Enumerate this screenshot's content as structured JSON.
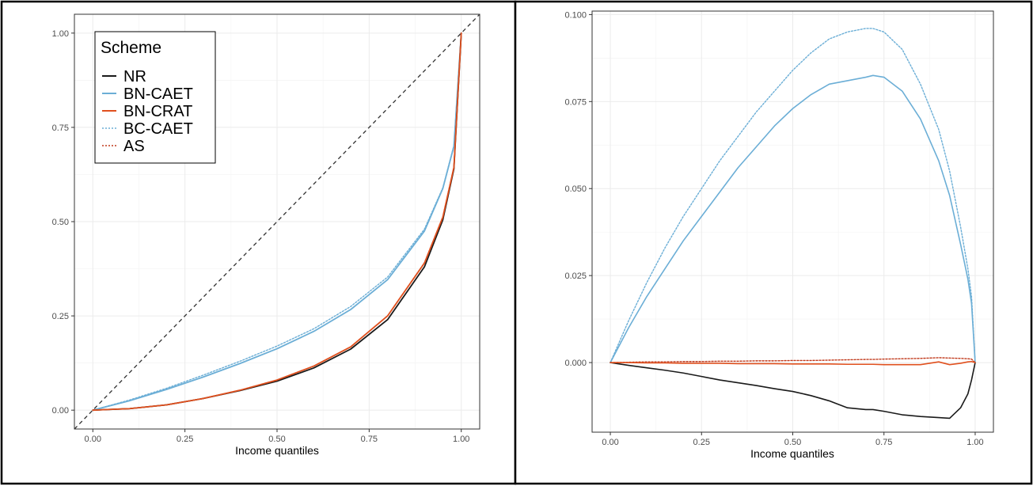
{
  "colors": {
    "NR": "#1a1a1a",
    "BN-CAET": "#6baed6",
    "BN-CRAT": "#e0501e",
    "BC-CAET": "#6baed6",
    "AS": "#c0391b",
    "equality_line": "#333333"
  },
  "legend": {
    "title": "Scheme",
    "placement": "top-left of left panel",
    "entries": [
      {
        "label": "NR",
        "linetype": "solid"
      },
      {
        "label": "BN-CAET",
        "linetype": "solid"
      },
      {
        "label": "BN-CRAT",
        "linetype": "solid"
      },
      {
        "label": "BC-CAET",
        "linetype": "dotted"
      },
      {
        "label": "AS",
        "linetype": "dotted"
      }
    ]
  },
  "chart_data": [
    {
      "type": "line",
      "xlabel": "Income quantiles",
      "ylabel": "",
      "xlim": [
        -0.05,
        1.05
      ],
      "ylim": [
        -0.05,
        1.05
      ],
      "x_ticks": [
        "0.00",
        "0.25",
        "0.50",
        "0.75",
        "1.00"
      ],
      "y_ticks": [
        "0.00",
        "0.25",
        "0.50",
        "0.75",
        "1.00"
      ],
      "grid": true,
      "reference_line": {
        "linetype": "dashed",
        "from": [
          -0.05,
          -0.05
        ],
        "to": [
          1.05,
          1.05
        ]
      },
      "x": [
        0,
        0.1,
        0.2,
        0.3,
        0.4,
        0.5,
        0.6,
        0.7,
        0.8,
        0.9,
        0.95,
        0.98,
        1.0
      ],
      "series": [
        {
          "name": "NR",
          "linetype": "solid",
          "values": [
            0,
            0.004,
            0.014,
            0.031,
            0.052,
            0.077,
            0.112,
            0.162,
            0.24,
            0.38,
            0.505,
            0.64,
            1.0
          ]
        },
        {
          "name": "BN-CAET",
          "linetype": "solid",
          "values": [
            0,
            0.025,
            0.055,
            0.088,
            0.124,
            0.163,
            0.209,
            0.267,
            0.346,
            0.475,
            0.588,
            0.7,
            1.0
          ]
        },
        {
          "name": "BN-CRAT",
          "linetype": "solid",
          "values": [
            0,
            0.004,
            0.014,
            0.031,
            0.053,
            0.08,
            0.117,
            0.168,
            0.25,
            0.39,
            0.512,
            0.644,
            1.0
          ]
        },
        {
          "name": "BC-CAET",
          "linetype": "dotted",
          "values": [
            0,
            0.027,
            0.058,
            0.093,
            0.13,
            0.17,
            0.216,
            0.275,
            0.353,
            0.48,
            0.59,
            0.702,
            1.0
          ]
        },
        {
          "name": "AS",
          "linetype": "dotted",
          "values": [
            0,
            0.004,
            0.014,
            0.031,
            0.053,
            0.08,
            0.117,
            0.168,
            0.25,
            0.391,
            0.513,
            0.645,
            1.0
          ]
        }
      ]
    },
    {
      "type": "line",
      "xlabel": "Income quantiles",
      "ylabel": "",
      "xlim": [
        -0.05,
        1.05
      ],
      "ylim": [
        -0.02,
        0.101
      ],
      "x_ticks": [
        "0.00",
        "0.25",
        "0.50",
        "0.75",
        "1.00"
      ],
      "y_ticks": [
        "0.000",
        "0.025",
        "0.050",
        "0.075",
        "0.100"
      ],
      "grid": true,
      "x": [
        0,
        0.05,
        0.1,
        0.15,
        0.2,
        0.25,
        0.3,
        0.35,
        0.4,
        0.45,
        0.5,
        0.55,
        0.6,
        0.65,
        0.7,
        0.72,
        0.75,
        0.8,
        0.85,
        0.9,
        0.93,
        0.96,
        0.98,
        0.99,
        1.0
      ],
      "series": [
        {
          "name": "NR",
          "linetype": "solid",
          "values": [
            0,
            -0.0008,
            -0.0015,
            -0.0022,
            -0.003,
            -0.004,
            -0.005,
            -0.0058,
            -0.0066,
            -0.0075,
            -0.0083,
            -0.0095,
            -0.011,
            -0.013,
            -0.0135,
            -0.0135,
            -0.014,
            -0.015,
            -0.0155,
            -0.0158,
            -0.016,
            -0.013,
            -0.009,
            -0.005,
            0
          ]
        },
        {
          "name": "BN-CAET",
          "linetype": "solid",
          "values": [
            0,
            0.01,
            0.019,
            0.027,
            0.035,
            0.042,
            0.049,
            0.056,
            0.062,
            0.068,
            0.073,
            0.077,
            0.08,
            0.081,
            0.082,
            0.0825,
            0.082,
            0.078,
            0.07,
            0.058,
            0.048,
            0.034,
            0.024,
            0.017,
            0.0
          ]
        },
        {
          "name": "BN-CRAT",
          "linetype": "solid",
          "values": [
            0,
            0,
            -0.0001,
            -0.0001,
            -0.0002,
            -0.0002,
            -0.0002,
            -0.0003,
            -0.0003,
            -0.0003,
            -0.0004,
            -0.0004,
            -0.0004,
            -0.0005,
            -0.0005,
            -0.0005,
            -0.0006,
            -0.0006,
            -0.0006,
            0.0002,
            -0.0006,
            -0.0002,
            0.0002,
            0.0003,
            0
          ]
        },
        {
          "name": "BC-CAET",
          "linetype": "dotted",
          "values": [
            0,
            0.012,
            0.023,
            0.033,
            0.042,
            0.05,
            0.058,
            0.065,
            0.072,
            0.078,
            0.084,
            0.089,
            0.093,
            0.095,
            0.096,
            0.096,
            0.095,
            0.09,
            0.08,
            0.067,
            0.055,
            0.039,
            0.027,
            0.019,
            0.0
          ]
        },
        {
          "name": "AS",
          "linetype": "dotted",
          "values": [
            0,
            0.0001,
            0.0002,
            0.0002,
            0.0003,
            0.0003,
            0.0004,
            0.0004,
            0.0005,
            0.0005,
            0.0006,
            0.0006,
            0.0007,
            0.0008,
            0.0009,
            0.0009,
            0.001,
            0.0011,
            0.0012,
            0.0014,
            0.0013,
            0.0012,
            0.0011,
            0.001,
            0
          ]
        }
      ]
    }
  ]
}
